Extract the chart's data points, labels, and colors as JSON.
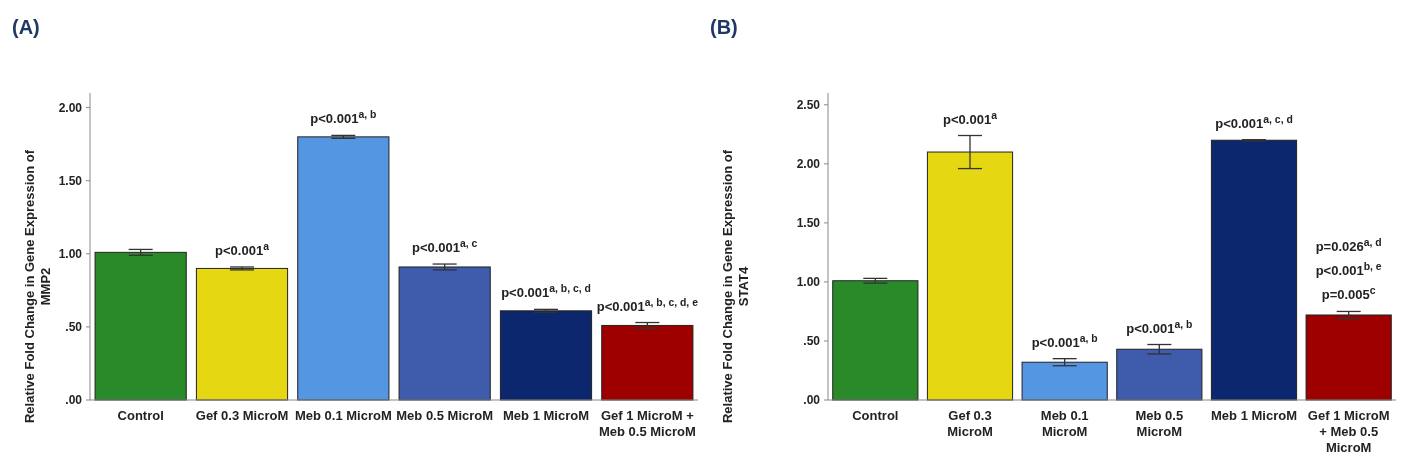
{
  "chart_data": [
    {
      "type": "bar",
      "title": "(A)",
      "ylabel": "Relative Fold Change in Gene Expression of MMP2",
      "categories": [
        "Control",
        "Gef 0.3 MicroM",
        "Meb 0.1 MicroM",
        "Meb 0.5 MicroM",
        "Meb 1 MicroM",
        "Gef 1 MicroM + Meb 0.5 MicroM"
      ],
      "values": [
        1.01,
        0.9,
        1.8,
        0.91,
        0.61,
        0.51
      ],
      "errors": [
        0.02,
        0.01,
        0.01,
        0.02,
        0.01,
        0.02
      ],
      "colors": [
        "#2a8a2a",
        "#e5d812",
        "#5596e3",
        "#3f5bab",
        "#0c276e",
        "#9e0000"
      ],
      "ylim": [
        0,
        2.1
      ],
      "yticks": [
        {
          "value": 0,
          "label": ".00"
        },
        {
          "value": 0.5,
          "label": ".50"
        },
        {
          "value": 1,
          "label": "1.00"
        },
        {
          "value": 1.5,
          "label": "1.50"
        },
        {
          "value": 2,
          "label": "2.00"
        }
      ],
      "grid": false,
      "annotations": [
        {
          "text": "p<0.001$^{a}$",
          "x": "Gef 0.3 MicroM",
          "y": 0.9
        },
        {
          "text": "p<0.001$^{a, b}$",
          "x": "Meb 0.1 MicroM",
          "y": 1.8
        },
        {
          "text": "p<0.001$^{a, c}$",
          "x": "Meb 0.5 MicroM",
          "y": 0.91
        },
        {
          "text": "p<0.001$^{a, b, c, d}$",
          "x": "Meb 1 MicroM",
          "y": 0.61
        },
        {
          "text": "p<0.001$^{a, b, c, d, e}$",
          "x": "Gef 1 MicroM + Meb 0.5 MicroM",
          "y": 0.51
        }
      ]
    },
    {
      "type": "bar",
      "title": "(B)",
      "ylabel": "Relative Fold Change in Gene Expression of STAT4",
      "categories": [
        "Control",
        "Gef 0.3 MicroM",
        "Meb 0.1 MicroM",
        "Meb 0.5 MicroM",
        "Meb 1 MicroM",
        "Gef 1 MicroM + Meb 0.5 MicroM"
      ],
      "values": [
        1.01,
        2.1,
        0.32,
        0.43,
        2.2,
        0.72
      ],
      "errors": [
        0.02,
        0.14,
        0.03,
        0.04,
        0.005,
        0.03
      ],
      "colors": [
        "#2a8a2a",
        "#e5d812",
        "#5596e3",
        "#3f5bab",
        "#0c276e",
        "#9e0000"
      ],
      "ylim": [
        0,
        2.6
      ],
      "yticks": [
        {
          "value": 0,
          "label": ".00"
        },
        {
          "value": 0.5,
          "label": ".50"
        },
        {
          "value": 1,
          "label": "1.00"
        },
        {
          "value": 1.5,
          "label": "1.50"
        },
        {
          "value": 2,
          "label": "2.00"
        },
        {
          "value": 2.5,
          "label": "2.50"
        }
      ],
      "grid": false,
      "annotations": [
        {
          "text": "p<0.001$^{a}$",
          "x": "Gef 0.3 MicroM",
          "y": 2.24
        },
        {
          "text": "p<0.001$^{a, b}$",
          "x": "Meb 0.1 MicroM",
          "y": 0.35
        },
        {
          "text": "p<0.001$^{a, b}$",
          "x": "Meb 0.5 MicroM",
          "y": 0.47
        },
        {
          "text": "p<0.001$^{a, c, d}$",
          "x": "Meb 1 MicroM",
          "y": 2.2
        },
        {
          "text": "p=0.005$^{c}$",
          "x": "Gef 1 MicroM + Meb 0.5 MicroM",
          "y": 0.75
        },
        "p<0.001$^{b, e}$",
        "p=0.026$^{a, d}$"
      ]
    }
  ]
}
